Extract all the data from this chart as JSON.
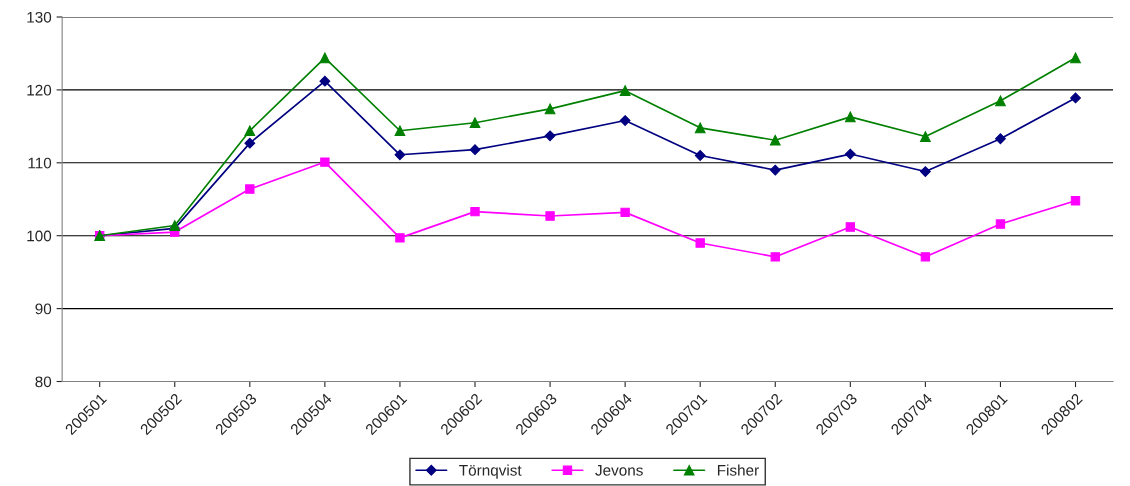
{
  "chart_data": {
    "type": "line",
    "categories": [
      "200501",
      "200502",
      "200503",
      "200504",
      "200601",
      "200602",
      "200603",
      "200604",
      "200701",
      "200702",
      "200703",
      "200704",
      "200801",
      "200802"
    ],
    "series": [
      {
        "name": "Törnqvist",
        "color": "#000080",
        "marker": "diamond",
        "values": [
          100,
          101.0,
          112.7,
          121.2,
          111.1,
          111.8,
          113.7,
          115.8,
          111.0,
          109.0,
          111.2,
          108.8,
          113.3,
          118.9
        ]
      },
      {
        "name": "Jevons",
        "color": "#ff00ff",
        "marker": "square",
        "values": [
          100,
          100.5,
          106.4,
          110.1,
          99.7,
          103.3,
          102.7,
          103.2,
          99.0,
          97.1,
          101.2,
          97.1,
          101.6,
          104.8
        ]
      },
      {
        "name": "Fisher",
        "color": "#008000",
        "marker": "triangle",
        "values": [
          100,
          101.4,
          114.4,
          124.4,
          114.4,
          115.5,
          117.4,
          119.9,
          114.8,
          113.1,
          116.3,
          113.6,
          118.5,
          124.4
        ]
      }
    ],
    "ylim": [
      80,
      130
    ],
    "yticks": [
      80,
      90,
      100,
      110,
      120,
      130
    ],
    "grid": "y",
    "legend": "bottom",
    "line_style": "solid"
  }
}
